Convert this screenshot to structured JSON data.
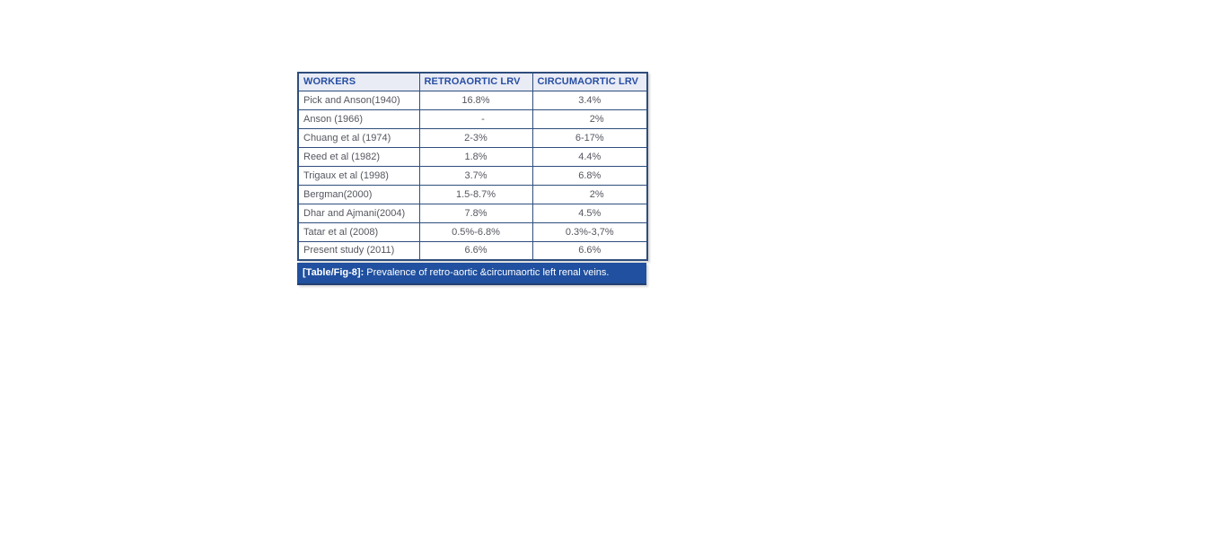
{
  "chart_data": {
    "type": "table",
    "columns": [
      "WORKERS",
      "RETROAORTIC LRV",
      "CIRCUMAORTIC LRV"
    ],
    "rows": [
      [
        "Pick and Anson(1940)",
        "16.8%",
        "3.4%"
      ],
      [
        "Anson (1966)",
        "-",
        "2%"
      ],
      [
        "Chuang et al (1974)",
        "2-3%",
        "6-17%"
      ],
      [
        "Reed et al (1982)",
        "1.8%",
        "4.4%"
      ],
      [
        "Trigaux et al (1998)",
        "3.7%",
        "6.8%"
      ],
      [
        "Bergman(2000)",
        "1.5-8.7%",
        "2%"
      ],
      [
        "Dhar and Ajmani(2004)",
        "7.8%",
        "4.5%"
      ],
      [
        "Tatar et al (2008)",
        "0.5%-6.8%",
        "0.3%-3,7%"
      ],
      [
        "Present study (2011)",
        "6.6%",
        "6.6%"
      ]
    ],
    "cell_align": [
      [
        "left",
        "center",
        "center"
      ],
      [
        "left",
        "offset",
        "offset"
      ],
      [
        "left",
        "center",
        "center"
      ],
      [
        "left",
        "center",
        "center"
      ],
      [
        "left",
        "center",
        "center"
      ],
      [
        "left",
        "center",
        "offset"
      ],
      [
        "left",
        "center",
        "center"
      ],
      [
        "left",
        "center",
        "center"
      ],
      [
        "left",
        "center",
        "center"
      ]
    ]
  },
  "caption": {
    "label": "[Table/Fig-8]:",
    "text": "Prevalence of retro-aortic &circumaortic left renal veins."
  },
  "colors": {
    "page_bg": "#ffffff",
    "table_border": "#2e4e7d",
    "header_bg": "#e9ebf5",
    "header_text": "#274fa3",
    "body_text": "#55575f",
    "caption_bg": "#20509f",
    "caption_text": "#ffffff",
    "caption_edge": "#23406f"
  }
}
